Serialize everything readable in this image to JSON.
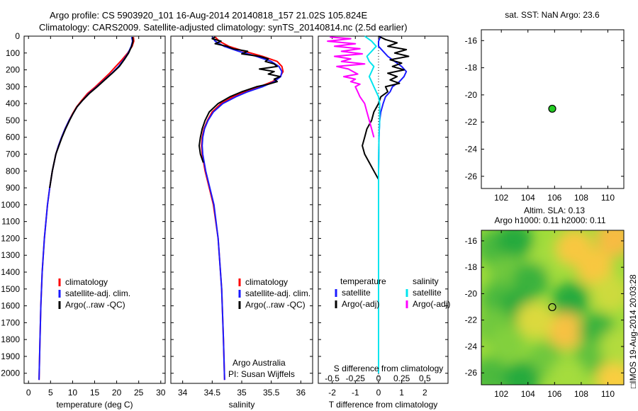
{
  "header": {
    "line1": "Argo profile: CS 5903920_101 16-Aug-2014 20140818_157 21.02S 105.824E",
    "line2": "Climatology: CARS2009. Satellite-adjusted climatology: synTS_20140814.nc (2.5d earlier)"
  },
  "colors": {
    "climatology": "#ff0000",
    "satellite": "#1a1aff",
    "argo": "#000000",
    "salinity_sat": "#00e5ee",
    "salinity_argo": "#ff00ff",
    "marker": "#22cc22"
  },
  "chart_data": [
    {
      "type": "line",
      "id": "temperature",
      "xlabel": "temperature (deg C)",
      "xlim": [
        -1,
        31
      ],
      "xticks": [
        0,
        5,
        10,
        15,
        20,
        25,
        30
      ],
      "ylim": [
        0,
        2060
      ],
      "yticks": [
        0,
        100,
        200,
        300,
        400,
        500,
        600,
        700,
        800,
        900,
        1000,
        1100,
        1200,
        1300,
        1400,
        1500,
        1600,
        1700,
        1800,
        1900,
        2000
      ],
      "y_reversed": true,
      "legend": [
        "climatology",
        "satellite-adj. clim.",
        "Argo(..raw -QC)"
      ],
      "legend_position": "lower-right",
      "series": [
        {
          "name": "climatology",
          "depth": [
            5,
            30,
            60,
            100,
            140,
            180,
            220,
            260,
            300,
            340,
            380,
            420,
            460,
            500,
            550,
            600,
            650,
            700,
            800,
            900,
            1000,
            1200,
            1400,
            1600,
            1800,
            2040
          ],
          "values": [
            23.8,
            23.9,
            23.5,
            22.5,
            21.2,
            19.8,
            18.4,
            16.8,
            15.2,
            13.4,
            12.1,
            10.9,
            10.0,
            9.2,
            8.3,
            7.5,
            6.8,
            6.2,
            5.4,
            4.8,
            4.3,
            3.6,
            3.1,
            2.8,
            2.6,
            2.4
          ]
        },
        {
          "name": "satellite-adj. clim.",
          "depth": [
            5,
            30,
            60,
            100,
            140,
            180,
            220,
            260,
            300,
            340,
            380,
            420,
            460,
            500,
            550,
            600,
            650,
            700,
            800,
            900,
            1000,
            1200,
            1400,
            1600,
            1800,
            2040
          ],
          "values": [
            23.4,
            23.6,
            23.3,
            22.6,
            21.6,
            20.4,
            18.9,
            17.2,
            15.5,
            13.7,
            12.3,
            11.0,
            10.1,
            9.2,
            8.3,
            7.5,
            6.8,
            6.2,
            5.4,
            4.8,
            4.3,
            3.6,
            3.1,
            2.8,
            2.6,
            2.4
          ]
        },
        {
          "name": "Argo(..raw -QC)",
          "depth": [
            5,
            30,
            60,
            100,
            140,
            180,
            220,
            260,
            300,
            340,
            380,
            420,
            460,
            500,
            550,
            600,
            650,
            700,
            800,
            900
          ],
          "values": [
            23.6,
            23.7,
            23.4,
            22.7,
            21.7,
            20.6,
            19.0,
            17.3,
            15.6,
            13.8,
            12.3,
            11.0,
            10.1,
            9.3,
            8.4,
            7.6,
            6.9,
            6.2,
            5.4,
            4.8
          ]
        }
      ]
    },
    {
      "type": "line",
      "id": "salinity",
      "xlabel": "salinity",
      "xlim": [
        33.8,
        36.2
      ],
      "xticks": [
        34,
        34.5,
        35,
        35.5,
        36
      ],
      "ylim": [
        0,
        2060
      ],
      "y_reversed": true,
      "legend": [
        "climatology",
        "satellite-adj. clim.",
        "Argo(..raw -QC)"
      ],
      "legend_position": "lower-right",
      "annotation": [
        "Argo Australia",
        "PI: Susan Wijffels"
      ],
      "series": [
        {
          "name": "climatology",
          "depth": [
            5,
            30,
            60,
            90,
            120,
            150,
            180,
            210,
            240,
            270,
            300,
            330,
            360,
            400,
            450,
            500,
            550,
            600,
            650,
            700,
            800,
            900,
            1000,
            1200,
            1500,
            1800,
            2040
          ],
          "values": [
            34.55,
            34.62,
            34.78,
            35.05,
            35.35,
            35.6,
            35.68,
            35.7,
            35.65,
            35.52,
            35.3,
            35.05,
            34.85,
            34.65,
            34.5,
            34.42,
            34.36,
            34.33,
            34.32,
            34.33,
            34.38,
            34.45,
            34.52,
            34.6,
            34.66,
            34.69,
            34.71
          ]
        },
        {
          "name": "satellite-adj. clim.",
          "depth": [
            5,
            30,
            60,
            90,
            120,
            150,
            180,
            210,
            240,
            270,
            300,
            330,
            360,
            400,
            450,
            500,
            550,
            600,
            650,
            700,
            800,
            900,
            1000,
            1200,
            1500,
            1800,
            2040
          ],
          "values": [
            34.5,
            34.55,
            34.7,
            34.95,
            35.25,
            35.5,
            35.63,
            35.68,
            35.66,
            35.55,
            35.35,
            35.1,
            34.9,
            34.68,
            34.52,
            34.43,
            34.37,
            34.34,
            34.33,
            34.34,
            34.39,
            34.46,
            34.53,
            34.6,
            34.66,
            34.69,
            34.71
          ]
        },
        {
          "name": "Argo(..raw -QC)",
          "depth": [
            5,
            15,
            30,
            45,
            60,
            75,
            90,
            105,
            120,
            135,
            150,
            165,
            180,
            195,
            210,
            225,
            240,
            255,
            270,
            285,
            300,
            330,
            360,
            400,
            450,
            500,
            550,
            600,
            650,
            700,
            750
          ],
          "values": [
            34.55,
            34.5,
            34.65,
            34.55,
            34.75,
            34.85,
            35.1,
            35.0,
            35.3,
            35.45,
            35.4,
            35.55,
            35.6,
            35.3,
            35.55,
            35.45,
            35.65,
            35.55,
            35.6,
            35.45,
            35.25,
            35.0,
            34.8,
            34.6,
            34.45,
            34.38,
            34.33,
            34.3,
            34.28,
            34.3,
            34.35
          ]
        }
      ]
    },
    {
      "type": "line",
      "id": "difference",
      "xlabel": "T difference from climatology",
      "top_axis_label": "S difference from climatology",
      "xlim": [
        -2.6,
        3.0
      ],
      "xticks": [
        -2,
        -1,
        0,
        1,
        2
      ],
      "top_ticks": [
        "-0.5",
        "-0.25",
        "0",
        "0.25",
        "0.5"
      ],
      "ylim": [
        0,
        2060
      ],
      "y_reversed": true,
      "legend_temperature_heading": "temperature",
      "legend_salinity_heading": "salinity",
      "legend_temperature": [
        "satellite",
        "Argo(-adj)"
      ],
      "legend_salinity": [
        "satellite",
        "Argo(-adj)"
      ],
      "series": [
        {
          "name": "temperature satellite",
          "depth": [
            0,
            30,
            60,
            90,
            120,
            150,
            180,
            210,
            240,
            270,
            300,
            330,
            360,
            400,
            450,
            500,
            600,
            800,
            1000,
            2000
          ],
          "values": [
            0.1,
            0.0,
            0.0,
            0.2,
            0.4,
            0.7,
            1.0,
            1.2,
            1.1,
            0.9,
            0.6,
            0.5,
            0.3,
            0.2,
            0.1,
            0.05,
            0.02,
            0.0,
            0.0,
            0.0
          ]
        },
        {
          "name": "temperature Argo(-adj)",
          "depth": [
            0,
            20,
            40,
            60,
            80,
            100,
            120,
            140,
            160,
            180,
            200,
            220,
            240,
            260,
            280,
            300,
            330,
            360,
            400,
            450,
            500,
            550,
            600,
            650,
            700,
            750,
            800,
            850
          ],
          "values": [
            0.0,
            0.3,
            0.8,
            0.4,
            1.2,
            0.7,
            1.3,
            0.5,
            1.0,
            0.6,
            1.1,
            0.4,
            0.8,
            0.5,
            0.9,
            0.3,
            0.4,
            0.1,
            0.0,
            -0.2,
            -0.3,
            -0.5,
            -0.6,
            -0.7,
            -0.6,
            -0.4,
            -0.2,
            0.0
          ]
        },
        {
          "name": "salinity satellite",
          "depth": [
            0,
            30,
            60,
            90,
            120,
            150,
            180,
            210,
            240,
            270,
            300,
            330,
            360,
            400,
            500,
            600,
            800,
            1000,
            1500,
            2000
          ],
          "values": [
            -0.6,
            -0.3,
            -0.1,
            -0.3,
            -0.5,
            -0.4,
            -0.2,
            -0.3,
            -0.4,
            -0.3,
            -0.2,
            -0.1,
            0.0,
            0.05,
            0.05,
            0.02,
            0.0,
            0.0,
            0.0,
            0.0
          ]
        },
        {
          "name": "salinity Argo(-adj)",
          "depth": [
            5,
            15,
            30,
            45,
            60,
            75,
            90,
            105,
            120,
            135,
            150,
            165,
            180,
            195,
            210,
            225,
            240,
            255,
            270,
            285,
            300,
            330,
            360,
            400,
            450,
            500,
            550,
            600
          ],
          "values": [
            -2.1,
            -1.2,
            -2.2,
            -1.0,
            -1.9,
            -0.8,
            -1.6,
            -0.7,
            -1.9,
            -1.2,
            -1.6,
            -0.6,
            -1.8,
            -1.3,
            -1.1,
            -0.9,
            -1.5,
            -1.0,
            -1.2,
            -0.8,
            -1.0,
            -0.9,
            -0.8,
            -0.6,
            -0.5,
            -0.4,
            -0.3,
            -0.2
          ]
        }
      ]
    },
    {
      "type": "scatter",
      "id": "sst-map",
      "title": "sat. SST: NaN Argo: 23.6",
      "xlim": [
        100.5,
        111.2
      ],
      "xticks": [
        102,
        104,
        106,
        108,
        110
      ],
      "ylim": [
        -26.9,
        -15.2
      ],
      "yticks": [
        -16,
        -18,
        -20,
        -22,
        -24,
        -26
      ],
      "points": [
        {
          "x": 105.824,
          "y": -21.02
        }
      ]
    },
    {
      "type": "heatmap",
      "id": "sla-map",
      "title_line1": "Altim. SLA: 0.13",
      "title_line2": "Argo h1000: 0.11 h2000: 0.11",
      "side_text": "IMOS 19-Aug-2014 20:03:28",
      "xlim": [
        100.5,
        111.2
      ],
      "xticks": [
        102,
        104,
        106,
        108,
        110
      ],
      "ylim": [
        -26.9,
        -15.2
      ],
      "yticks": [
        -16,
        -18,
        -20,
        -22,
        -24,
        -26
      ],
      "points": [
        {
          "x": 105.824,
          "y": -21.02
        }
      ],
      "blobs": [
        {
          "x": 101.5,
          "y": -16.5,
          "level": 0.1
        },
        {
          "x": 103.0,
          "y": -16.0,
          "level": 0.0
        },
        {
          "x": 105.5,
          "y": -17.5,
          "level": 0.35
        },
        {
          "x": 107.5,
          "y": -16.5,
          "level": 0.8
        },
        {
          "x": 110.5,
          "y": -15.8,
          "level": 0.9
        },
        {
          "x": 102.5,
          "y": -18.5,
          "level": 0.2
        },
        {
          "x": 109.0,
          "y": -18.0,
          "level": 0.8
        },
        {
          "x": 104.2,
          "y": -19.0,
          "level": 0.05
        },
        {
          "x": 101.8,
          "y": -20.5,
          "level": 0.1
        },
        {
          "x": 103.2,
          "y": -21.2,
          "level": 0.0
        },
        {
          "x": 107.2,
          "y": -20.5,
          "level": 0.0
        },
        {
          "x": 110.2,
          "y": -20.0,
          "level": 0.5
        },
        {
          "x": 106.8,
          "y": -22.8,
          "level": 0.85
        },
        {
          "x": 101.5,
          "y": -22.5,
          "level": 0.2
        },
        {
          "x": 104.5,
          "y": -22.0,
          "level": 0.55
        },
        {
          "x": 109.2,
          "y": -22.8,
          "level": 0.05
        },
        {
          "x": 102.5,
          "y": -23.8,
          "level": 0.25
        },
        {
          "x": 105.3,
          "y": -25.0,
          "level": 0.2
        },
        {
          "x": 108.8,
          "y": -24.8,
          "level": 0.15
        },
        {
          "x": 101.2,
          "y": -26.2,
          "level": 0.1
        },
        {
          "x": 103.5,
          "y": -26.5,
          "level": 0.0
        },
        {
          "x": 107.0,
          "y": -26.3,
          "level": 0.35
        },
        {
          "x": 110.5,
          "y": -26.5,
          "level": 0.75
        },
        {
          "x": 110.8,
          "y": -24.0,
          "level": 0.4
        }
      ]
    }
  ]
}
